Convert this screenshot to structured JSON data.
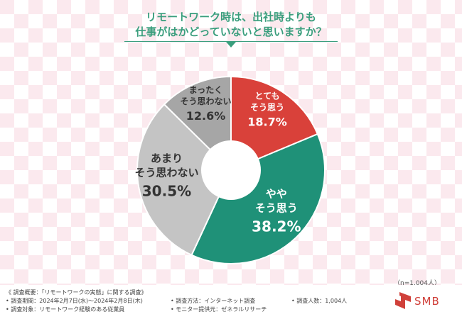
{
  "title": {
    "line1": "リモートワーク時は、出社時よりも",
    "line2": "仕事がはかどっていないと思いますか？"
  },
  "chart_data": {
    "type": "pie",
    "donut": true,
    "slices": [
      {
        "label_line1": "とても",
        "label_line2": "そう思う",
        "value_text": "18.7%",
        "value": 18.7,
        "color": "#d9413a",
        "text_color": "#ffffff"
      },
      {
        "label_line1": "やや",
        "label_line2": "そう思う",
        "value_text": "38.2%",
        "value": 38.2,
        "color": "#1f9178",
        "text_color": "#ffffff"
      },
      {
        "label_line1": "あまり",
        "label_line2": "そう思わない",
        "value_text": "30.5%",
        "value": 30.5,
        "color": "#c4c4c4",
        "text_color": "#333333"
      },
      {
        "label_line1": "まったく",
        "label_line2": "そう思わない",
        "value_text": "12.6%",
        "value": 12.6,
        "color": "#a6a6a6",
        "text_color": "#333333"
      }
    ]
  },
  "sample_size": "（n=1,004人）",
  "footer": {
    "overview": "《 調査概要：「リモートワークの実態」に関する調査》",
    "period": "• 調査期間：2024年2月7日(水)～2024年2月8日(木)",
    "target": "• 調査対象：リモートワーク経験のある従業員",
    "method": "• 調査方法：インターネット調査",
    "provider": "• モニター提供元：ゼネラルリサーチ",
    "count": "• 調査人数：1,004人"
  },
  "logo": {
    "text": "SMB",
    "color": "#d0403a"
  }
}
